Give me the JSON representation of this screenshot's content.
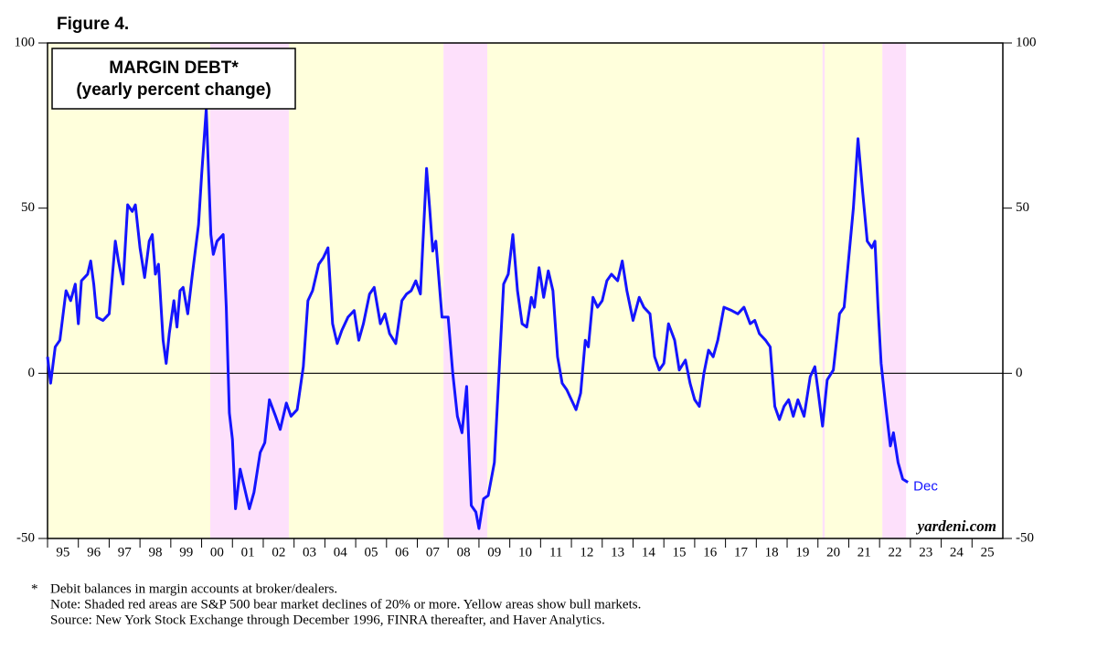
{
  "figure_label": "Figure 4.",
  "chart_data": {
    "type": "line",
    "title": "MARGIN DEBT*",
    "subtitle": "(yearly percent change)",
    "x": [
      1995.0,
      1995.1,
      1995.25,
      1995.4,
      1995.6,
      1995.75,
      1995.9,
      1996.0,
      1996.1,
      1996.3,
      1996.4,
      1996.5,
      1996.6,
      1996.8,
      1997.0,
      1997.2,
      1997.3,
      1997.45,
      1997.6,
      1997.75,
      1997.85,
      1998.0,
      1998.15,
      1998.3,
      1998.4,
      1998.5,
      1998.6,
      1998.75,
      1998.85,
      1998.95,
      1999.1,
      1999.2,
      1999.3,
      1999.4,
      1999.55,
      1999.7,
      1999.9,
      2000.0,
      2000.15,
      2000.3,
      2000.38,
      2000.5,
      2000.7,
      2000.8,
      2000.9,
      2001.0,
      2001.1,
      2001.25,
      2001.4,
      2001.55,
      2001.7,
      2001.9,
      2002.05,
      2002.2,
      2002.4,
      2002.55,
      2002.75,
      2002.9,
      2003.1,
      2003.3,
      2003.45,
      2003.6,
      2003.8,
      2003.95,
      2004.1,
      2004.25,
      2004.4,
      2004.55,
      2004.75,
      2004.95,
      2005.1,
      2005.25,
      2005.45,
      2005.6,
      2005.8,
      2005.95,
      2006.1,
      2006.3,
      2006.5,
      2006.65,
      2006.8,
      2006.95,
      2007.1,
      2007.3,
      2007.4,
      2007.5,
      2007.6,
      2007.8,
      2008.0,
      2008.15,
      2008.3,
      2008.45,
      2008.6,
      2008.75,
      2008.9,
      2009.0,
      2009.15,
      2009.3,
      2009.5,
      2009.65,
      2009.8,
      2009.95,
      2010.1,
      2010.25,
      2010.4,
      2010.55,
      2010.7,
      2010.8,
      2010.95,
      2011.1,
      2011.25,
      2011.4,
      2011.55,
      2011.7,
      2011.85,
      2012.0,
      2012.15,
      2012.3,
      2012.45,
      2012.55,
      2012.7,
      2012.85,
      2013.0,
      2013.15,
      2013.3,
      2013.5,
      2013.65,
      2013.8,
      2014.0,
      2014.2,
      2014.35,
      2014.55,
      2014.7,
      2014.85,
      2015.0,
      2015.15,
      2015.35,
      2015.5,
      2015.7,
      2015.85,
      2016.0,
      2016.15,
      2016.3,
      2016.45,
      2016.6,
      2016.75,
      2016.95,
      2017.2,
      2017.4,
      2017.6,
      2017.8,
      2017.95,
      2018.1,
      2018.3,
      2018.45,
      2018.6,
      2018.75,
      2018.9,
      2019.05,
      2019.2,
      2019.35,
      2019.55,
      2019.75,
      2019.9,
      2020.0,
      2020.15,
      2020.3,
      2020.5,
      2020.7,
      2020.85,
      2021.0,
      2021.15,
      2021.3,
      2021.45,
      2021.6,
      2021.75,
      2021.85,
      2021.95,
      2022.05,
      2022.2,
      2022.35,
      2022.45,
      2022.6,
      2022.75,
      2022.92
    ],
    "series": [
      {
        "name": "Margin debt",
        "color": "#1414ff",
        "values": [
          5,
          -3,
          8,
          10,
          25,
          22,
          27,
          15,
          28,
          30,
          34,
          27,
          17,
          16,
          18,
          40,
          34,
          27,
          51,
          49,
          51,
          38,
          29,
          40,
          42,
          30,
          33,
          10,
          3,
          12,
          22,
          14,
          25,
          26,
          18,
          30,
          45,
          60,
          80,
          42,
          36,
          40,
          42,
          20,
          -12,
          -20,
          -41,
          -29,
          -35,
          -41,
          -36,
          -24,
          -21,
          -8,
          -13,
          -17,
          -9,
          -13,
          -11,
          2,
          22,
          25,
          33,
          35,
          38,
          15,
          9,
          13,
          17,
          19,
          10,
          15,
          24,
          26,
          15,
          18,
          12,
          9,
          22,
          24,
          25,
          28,
          24,
          62,
          50,
          37,
          40,
          17,
          17,
          0,
          -13,
          -18,
          -4,
          -40,
          -42,
          -47,
          -38,
          -37,
          -27,
          0,
          27,
          30,
          42,
          25,
          15,
          14,
          23,
          20,
          32,
          23,
          31,
          25,
          5,
          -3,
          -5,
          -8,
          -11,
          -6,
          10,
          8,
          23,
          20,
          22,
          28,
          30,
          28,
          34,
          25,
          16,
          23,
          20,
          18,
          5,
          1,
          3,
          15,
          10,
          1,
          4,
          -3,
          -8,
          -10,
          0,
          7,
          5,
          10,
          20,
          19,
          18,
          20,
          15,
          16,
          12,
          10,
          8,
          -10,
          -14,
          -10,
          -8,
          -13,
          -8,
          -13,
          -1,
          2,
          -5,
          -16,
          -2,
          1,
          18,
          20,
          35,
          50,
          71,
          55,
          40,
          38,
          40,
          20,
          3,
          -10,
          -22,
          -18,
          -27,
          -32,
          -33
        ]
      }
    ],
    "end_label": "Dec",
    "bear_markets": [
      [
        2000.28,
        2002.83
      ],
      [
        2007.85,
        2009.27
      ],
      [
        2020.15,
        2020.22
      ],
      [
        2022.09,
        2022.86
      ]
    ],
    "bull_markets": [
      [
        1995.0,
        2000.28
      ],
      [
        2002.83,
        2007.85
      ],
      [
        2009.27,
        2020.15
      ],
      [
        2020.22,
        2022.09
      ]
    ],
    "xlim": [
      1995,
      2026
    ],
    "xticks": [
      {
        "value": 1995,
        "label": "95"
      },
      {
        "value": 1996,
        "label": "96"
      },
      {
        "value": 1997,
        "label": "97"
      },
      {
        "value": 1998,
        "label": "98"
      },
      {
        "value": 1999,
        "label": "99"
      },
      {
        "value": 2000,
        "label": "00"
      },
      {
        "value": 2001,
        "label": "01"
      },
      {
        "value": 2002,
        "label": "02"
      },
      {
        "value": 2003,
        "label": "03"
      },
      {
        "value": 2004,
        "label": "04"
      },
      {
        "value": 2005,
        "label": "05"
      },
      {
        "value": 2006,
        "label": "06"
      },
      {
        "value": 2007,
        "label": "07"
      },
      {
        "value": 2008,
        "label": "08"
      },
      {
        "value": 2009,
        "label": "09"
      },
      {
        "value": 2010,
        "label": "10"
      },
      {
        "value": 2011,
        "label": "11"
      },
      {
        "value": 2012,
        "label": "12"
      },
      {
        "value": 2013,
        "label": "13"
      },
      {
        "value": 2014,
        "label": "14"
      },
      {
        "value": 2015,
        "label": "15"
      },
      {
        "value": 2016,
        "label": "16"
      },
      {
        "value": 2017,
        "label": "17"
      },
      {
        "value": 2018,
        "label": "18"
      },
      {
        "value": 2019,
        "label": "19"
      },
      {
        "value": 2020,
        "label": "20"
      },
      {
        "value": 2021,
        "label": "21"
      },
      {
        "value": 2022,
        "label": "22"
      },
      {
        "value": 2023,
        "label": "23"
      },
      {
        "value": 2024,
        "label": "24"
      },
      {
        "value": 2025,
        "label": "25"
      }
    ],
    "ylim": [
      -50,
      100
    ],
    "yticks": [
      -50,
      0,
      50,
      100
    ],
    "watermark": "yardeni.com"
  },
  "footnotes": {
    "marker": "*",
    "lines": [
      "Debit balances in margin accounts at broker/dealers.",
      "Note: Shaded red areas are S&P 500 bear market declines of 20% or more. Yellow areas show bull markets.",
      "Source: New York Stock Exchange through December 1996, FINRA thereafter, and Haver Analytics."
    ]
  }
}
